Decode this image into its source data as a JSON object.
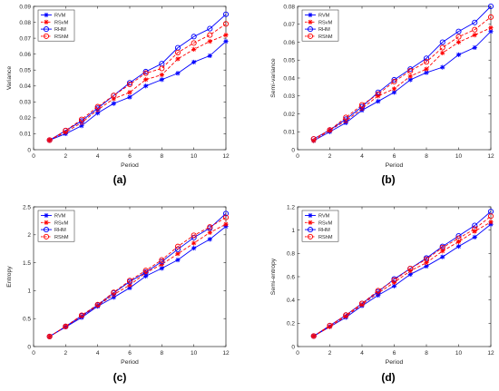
{
  "figure": {
    "panel_captions": [
      "(a)",
      "(b)",
      "(c)",
      "(d)"
    ]
  },
  "chart_data": [
    {
      "type": "line",
      "title": "",
      "caption": "(a)",
      "xlabel": "Period",
      "ylabel": "Variance",
      "xlim": [
        0,
        12
      ],
      "ylim": [
        0,
        0.09
      ],
      "xticks": [
        0,
        2,
        4,
        6,
        8,
        10,
        12
      ],
      "yticks": [
        0,
        0.01,
        0.02,
        0.03,
        0.04,
        0.05,
        0.06,
        0.07,
        0.08,
        0.09
      ],
      "ytick_labels": [
        "0",
        "0.01",
        "0.02",
        "0.03",
        "0.04",
        "0.05",
        "0.06",
        "0.07",
        "0.08",
        "0.09"
      ],
      "grid": false,
      "legend_position": "top-left",
      "x": [
        1,
        2,
        3,
        4,
        5,
        6,
        7,
        8,
        9,
        10,
        11,
        12
      ],
      "series": [
        {
          "name": "RVM",
          "color": "#0000ff",
          "dash": "solid",
          "marker": "star",
          "values": [
            0.006,
            0.01,
            0.015,
            0.023,
            0.029,
            0.033,
            0.04,
            0.044,
            0.048,
            0.055,
            0.059,
            0.068
          ]
        },
        {
          "name": "RSvM",
          "color": "#ff0000",
          "dash": "dashed",
          "marker": "star",
          "values": [
            0.006,
            0.011,
            0.017,
            0.025,
            0.032,
            0.036,
            0.044,
            0.047,
            0.057,
            0.063,
            0.068,
            0.072
          ]
        },
        {
          "name": "RHM",
          "color": "#0000ff",
          "dash": "solid",
          "marker": "open-circle",
          "values": [
            0.006,
            0.012,
            0.018,
            0.026,
            0.034,
            0.042,
            0.049,
            0.054,
            0.064,
            0.071,
            0.076,
            0.085
          ]
        },
        {
          "name": "RShM",
          "color": "#ff0000",
          "dash": "dashed",
          "marker": "open-circle",
          "values": [
            0.006,
            0.012,
            0.019,
            0.027,
            0.034,
            0.041,
            0.048,
            0.051,
            0.061,
            0.067,
            0.072,
            0.079
          ]
        }
      ]
    },
    {
      "type": "line",
      "title": "",
      "caption": "(b)",
      "xlabel": "Period",
      "ylabel": "Semi-variance",
      "xlim": [
        0,
        12
      ],
      "ylim": [
        0,
        0.08
      ],
      "xticks": [
        0,
        2,
        4,
        6,
        8,
        10,
        12
      ],
      "yticks": [
        0,
        0.01,
        0.02,
        0.03,
        0.04,
        0.05,
        0.06,
        0.07,
        0.08
      ],
      "ytick_labels": [
        "0",
        "0.01",
        "0.02",
        "0.03",
        "0.04",
        "0.05",
        "0.06",
        "0.07",
        "0.08"
      ],
      "grid": false,
      "legend_position": "top-left",
      "x": [
        1,
        2,
        3,
        4,
        5,
        6,
        7,
        8,
        9,
        10,
        11,
        12
      ],
      "series": [
        {
          "name": "RVM",
          "color": "#0000ff",
          "dash": "solid",
          "marker": "star",
          "values": [
            0.005,
            0.01,
            0.015,
            0.022,
            0.027,
            0.032,
            0.039,
            0.043,
            0.046,
            0.053,
            0.057,
            0.066
          ]
        },
        {
          "name": "RSvM",
          "color": "#ff0000",
          "dash": "dashed",
          "marker": "star",
          "values": [
            0.005,
            0.011,
            0.016,
            0.023,
            0.03,
            0.034,
            0.041,
            0.045,
            0.054,
            0.06,
            0.064,
            0.068
          ]
        },
        {
          "name": "RHM",
          "color": "#0000ff",
          "dash": "solid",
          "marker": "open-circle",
          "values": [
            0.006,
            0.011,
            0.017,
            0.024,
            0.032,
            0.039,
            0.045,
            0.051,
            0.06,
            0.066,
            0.071,
            0.08
          ]
        },
        {
          "name": "RShM",
          "color": "#ff0000",
          "dash": "dashed",
          "marker": "open-circle",
          "values": [
            0.006,
            0.011,
            0.018,
            0.025,
            0.031,
            0.038,
            0.044,
            0.049,
            0.057,
            0.063,
            0.067,
            0.074
          ]
        }
      ]
    },
    {
      "type": "line",
      "title": "",
      "caption": "(c)",
      "xlabel": "Period",
      "ylabel": "Entropy",
      "xlim": [
        0,
        12
      ],
      "ylim": [
        0,
        2.5
      ],
      "xticks": [
        0,
        2,
        4,
        6,
        8,
        10,
        12
      ],
      "yticks": [
        0,
        0.5,
        1,
        1.5,
        2,
        2.5
      ],
      "ytick_labels": [
        "0",
        "0.5",
        "1",
        "1.5",
        "2",
        "2.5"
      ],
      "grid": false,
      "legend_position": "top-left",
      "x": [
        1,
        2,
        3,
        4,
        5,
        6,
        7,
        8,
        9,
        10,
        11,
        12
      ],
      "series": [
        {
          "name": "RVM",
          "color": "#0000ff",
          "dash": "solid",
          "marker": "star",
          "values": [
            0.18,
            0.35,
            0.52,
            0.72,
            0.88,
            1.05,
            1.26,
            1.4,
            1.55,
            1.76,
            1.92,
            2.15
          ]
        },
        {
          "name": "RSvM",
          "color": "#ff0000",
          "dash": "dashed",
          "marker": "star",
          "values": [
            0.18,
            0.36,
            0.54,
            0.73,
            0.93,
            1.1,
            1.32,
            1.47,
            1.66,
            1.85,
            2.04,
            2.19
          ]
        },
        {
          "name": "RHM",
          "color": "#0000ff",
          "dash": "solid",
          "marker": "open-circle",
          "values": [
            0.18,
            0.36,
            0.55,
            0.74,
            0.96,
            1.16,
            1.33,
            1.52,
            1.74,
            1.95,
            2.12,
            2.38
          ]
        },
        {
          "name": "RShM",
          "color": "#ff0000",
          "dash": "dashed",
          "marker": "open-circle",
          "values": [
            0.18,
            0.36,
            0.56,
            0.75,
            0.97,
            1.18,
            1.36,
            1.55,
            1.79,
            1.99,
            2.14,
            2.31
          ]
        }
      ]
    },
    {
      "type": "line",
      "title": "",
      "caption": "(d)",
      "xlabel": "Period",
      "ylabel": "Semi-entropy",
      "xlim": [
        0,
        12
      ],
      "ylim": [
        0,
        1.2
      ],
      "xticks": [
        0,
        2,
        4,
        6,
        8,
        10,
        12
      ],
      "yticks": [
        0,
        0.2,
        0.4,
        0.6,
        0.8,
        1,
        1.2
      ],
      "ytick_labels": [
        "0",
        "0.2",
        "0.4",
        "0.6",
        "0.8",
        "1",
        "1.2"
      ],
      "grid": false,
      "legend_position": "top-left",
      "x": [
        1,
        2,
        3,
        4,
        5,
        6,
        7,
        8,
        9,
        10,
        11,
        12
      ],
      "series": [
        {
          "name": "RVM",
          "color": "#0000ff",
          "dash": "solid",
          "marker": "star",
          "values": [
            0.09,
            0.17,
            0.25,
            0.35,
            0.44,
            0.52,
            0.62,
            0.69,
            0.77,
            0.86,
            0.94,
            1.05
          ]
        },
        {
          "name": "RSvM",
          "color": "#ff0000",
          "dash": "dashed",
          "marker": "star",
          "values": [
            0.09,
            0.17,
            0.26,
            0.36,
            0.46,
            0.55,
            0.65,
            0.72,
            0.82,
            0.9,
            0.99,
            1.07
          ]
        },
        {
          "name": "RHM",
          "color": "#0000ff",
          "dash": "solid",
          "marker": "open-circle",
          "values": [
            0.09,
            0.18,
            0.27,
            0.37,
            0.47,
            0.58,
            0.67,
            0.76,
            0.86,
            0.95,
            1.04,
            1.16
          ]
        },
        {
          "name": "RShM",
          "color": "#ff0000",
          "dash": "dashed",
          "marker": "open-circle",
          "values": [
            0.09,
            0.18,
            0.27,
            0.37,
            0.48,
            0.57,
            0.67,
            0.75,
            0.85,
            0.93,
            1.01,
            1.12
          ]
        }
      ]
    }
  ]
}
